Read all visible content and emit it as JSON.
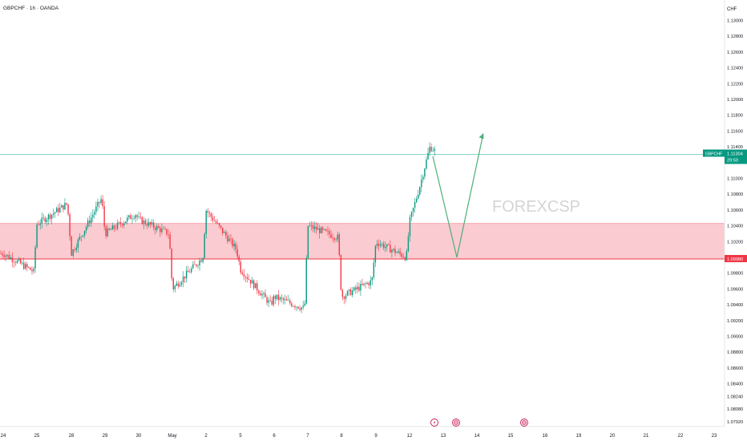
{
  "header": {
    "symbol_line": "GBPCHF · 1h · OANDA"
  },
  "watermark": "FOREXCSP",
  "price_axis": {
    "currency": "CHF",
    "ticks": [
      "1.13000",
      "1.12800",
      "1.12600",
      "1.12400",
      "1.12200",
      "1.12000",
      "1.11800",
      "1.11600",
      "1.11400",
      "1.11000",
      "1.10800",
      "1.10600",
      "1.10400",
      "1.10200",
      "1.09800",
      "1.09600",
      "1.09400",
      "1.09200",
      "1.09000",
      "1.08800",
      "1.08600",
      "1.08400",
      "1.08240",
      "1.08080",
      "1.07920"
    ],
    "current_label": {
      "symbol": "GBPCHF",
      "price": "1.11304",
      "countdown": "29:50"
    },
    "zone_label": "1.09980"
  },
  "time_axis": {
    "labels": [
      "24",
      "25",
      "28",
      "29",
      "30",
      "May",
      "2",
      "5",
      "6",
      "7",
      "8",
      "9",
      "12",
      "13",
      "14",
      "15",
      "16",
      "19",
      "20",
      "21",
      "22",
      "23"
    ]
  },
  "colors": {
    "up": "#089981",
    "down": "#f23645",
    "zone_fill": "#f9c5cb",
    "zone_line": "#f23645",
    "arrow": "#4caf7a",
    "price_line": "#089981",
    "event_icon": "#c2185b"
  },
  "chart_data": {
    "type": "candlestick",
    "interval": "1h",
    "y_range": [
      1.078,
      1.132
    ],
    "zone": {
      "bottom": 1.0998,
      "top": 1.1043
    },
    "current_price": 1.11304,
    "projection_path": [
      {
        "date": "May 12",
        "price": 1.1128
      },
      {
        "date": "May 13",
        "price": 1.1
      },
      {
        "date": "May 14",
        "price": 1.1157
      }
    ],
    "approx_close_path": [
      {
        "date": "Apr 24",
        "price": 1.1005
      },
      {
        "date": "Apr 24",
        "price": 1.0982
      },
      {
        "date": "Apr 25",
        "price": 1.1042
      },
      {
        "date": "Apr 25",
        "price": 1.1068
      },
      {
        "date": "Apr 28",
        "price": 1.1005
      },
      {
        "date": "Apr 28",
        "price": 1.1075
      },
      {
        "date": "Apr 29",
        "price": 1.103
      },
      {
        "date": "Apr 29",
        "price": 1.1055
      },
      {
        "date": "Apr 30",
        "price": 1.1048
      },
      {
        "date": "Apr 30",
        "price": 1.103
      },
      {
        "date": "May 1",
        "price": 1.096
      },
      {
        "date": "May 1",
        "price": 1.1
      },
      {
        "date": "May 2",
        "price": 1.106
      },
      {
        "date": "May 2",
        "price": 1.101
      },
      {
        "date": "May 5",
        "price": 1.0985
      },
      {
        "date": "May 5",
        "price": 1.094
      },
      {
        "date": "May 6",
        "price": 1.095
      },
      {
        "date": "May 6",
        "price": 1.0935
      },
      {
        "date": "May 7",
        "price": 1.104
      },
      {
        "date": "May 7",
        "price": 1.1025
      },
      {
        "date": "May 8",
        "price": 1.095
      },
      {
        "date": "May 8",
        "price": 1.097
      },
      {
        "date": "May 9",
        "price": 1.102
      },
      {
        "date": "May 9",
        "price": 1.1
      },
      {
        "date": "May 12",
        "price": 1.1045
      },
      {
        "date": "May 12",
        "price": 1.109
      },
      {
        "date": "May 12",
        "price": 1.114
      },
      {
        "date": "May 12",
        "price": 1.113
      }
    ]
  }
}
